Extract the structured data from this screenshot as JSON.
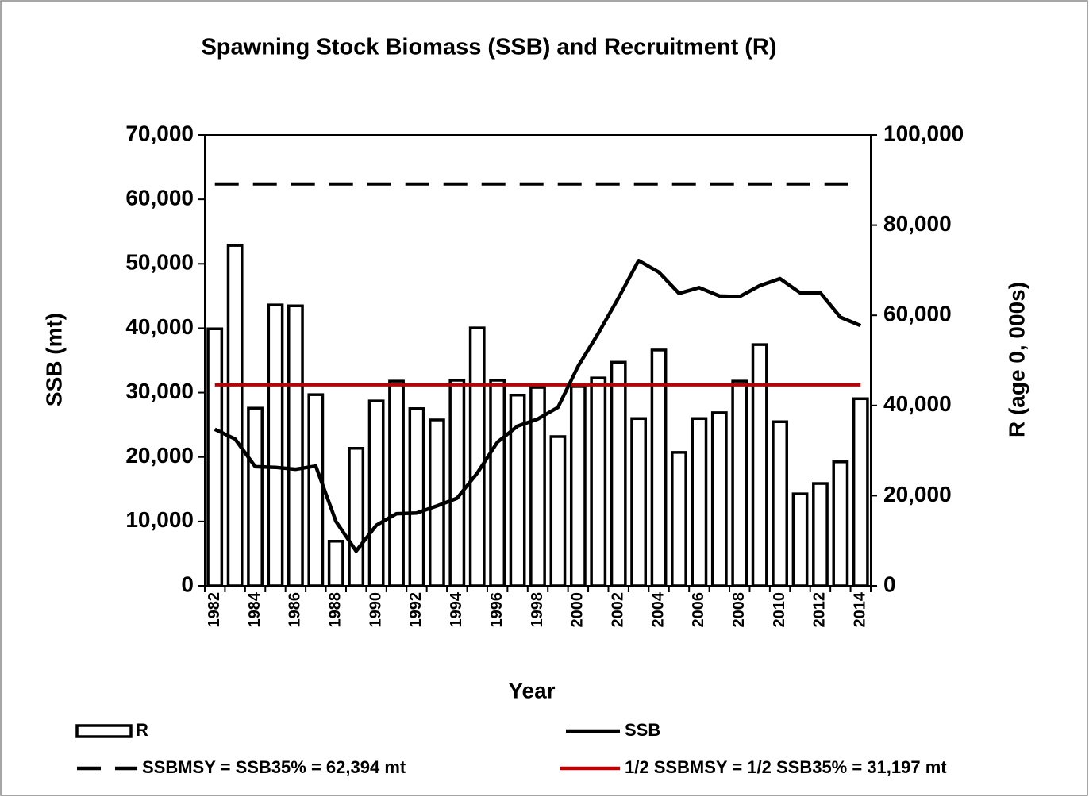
{
  "chart_data": {
    "type": "bar-line",
    "title": "Spawning Stock Biomass (SSB) and Recruitment (R)",
    "x_label": "Year",
    "y_label": "SSB (mt)",
    "y2_label": "R (age 0, 000s)",
    "categories": [
      "1982",
      null,
      "1984",
      null,
      "1986",
      null,
      "1988",
      null,
      "1990",
      null,
      "1992",
      null,
      "1994",
      null,
      "1996",
      null,
      "1998",
      null,
      "2000",
      null,
      "2002",
      null,
      "2004",
      null,
      "2006",
      null,
      "2008",
      null,
      "2010",
      null,
      "2012",
      null,
      "2014"
    ],
    "series": [
      {
        "name": "R",
        "type": "bar",
        "axis": "y2",
        "color": "#ffffff",
        "values": [
          57000,
          75500,
          39400,
          62300,
          62100,
          42400,
          9900,
          30500,
          41000,
          45400,
          39300,
          36800,
          45600,
          57200,
          45600,
          42300,
          44000,
          33100,
          44200,
          46100,
          49600,
          37100,
          52300,
          29600,
          37100,
          38400,
          45400,
          53500,
          36400,
          20400,
          22700,
          27500,
          41500
        ]
      },
      {
        "name": "SSB",
        "type": "line",
        "axis": "y",
        "color": "#000000",
        "values": [
          24300,
          22800,
          18500,
          18400,
          18100,
          18600,
          10000,
          5400,
          9400,
          11200,
          11300,
          12400,
          13600,
          17500,
          22300,
          24800,
          25900,
          27700,
          34100,
          39200,
          44700,
          50500,
          48700,
          45400,
          46300,
          45000,
          44900,
          46600,
          47700,
          45500,
          45500,
          41700,
          40400
        ]
      }
    ],
    "reference_lines": [
      {
        "name": "SSBMSY = SSB35% = 62,394 mt",
        "value": 62394,
        "color": "#000000",
        "dashed": true
      },
      {
        "name": "1/2 SSBMSY = 1/2 SSB35%  = 31,197 mt",
        "value": 31197,
        "color": "#c00000",
        "dashed": false
      }
    ],
    "ylim": [
      0,
      70000
    ],
    "yticks": [
      0,
      {
        "value": 10000,
        "label": "10,000"
      },
      {
        "value": 20000,
        "label": "20,000"
      },
      {
        "value": 30000,
        "label": "30,000"
      },
      {
        "value": 40000,
        "label": "40,000"
      },
      {
        "value": 50000,
        "label": "50,000"
      },
      {
        "value": 60000,
        "label": "60,000"
      },
      {
        "value": 70000,
        "label": "70,000"
      }
    ],
    "y2lim": [
      0,
      100000
    ],
    "y2ticks": [
      0,
      {
        "value": 20000,
        "label": "20,000"
      },
      {
        "value": 40000,
        "label": "40,000"
      },
      {
        "value": 60000,
        "label": "60,000"
      },
      {
        "value": 80000,
        "label": "80,000"
      },
      {
        "value": 100000,
        "label": "100,000"
      }
    ],
    "grid": false
  }
}
